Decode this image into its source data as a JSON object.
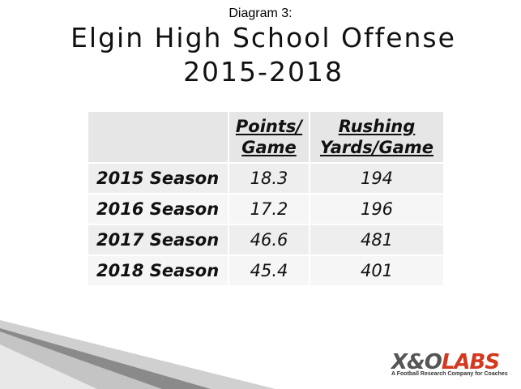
{
  "header": {
    "caption": "Diagram 3:",
    "title": "Elgin High School Offense 2015-2018"
  },
  "table": {
    "columns": [
      "Points/ Game",
      "Rushing Yards/Game"
    ],
    "rows": [
      [
        "2015 Season",
        18.3,
        194
      ],
      [
        "2016 Season",
        17.2,
        196
      ],
      [
        "2017 Season",
        46.6,
        481
      ],
      [
        "2018 Season",
        45.4,
        401
      ]
    ]
  },
  "logo": {
    "brand": "X&O",
    "suffix": "LABS",
    "tagline": "A Football Research Company for Coaches"
  }
}
